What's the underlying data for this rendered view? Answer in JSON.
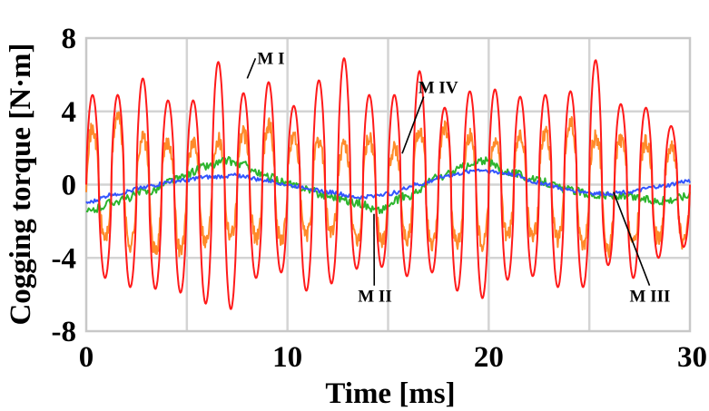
{
  "chart_data": {
    "type": "line",
    "title": "",
    "xlabel": "Time [ms]",
    "ylabel": "Cogging torque [N·m]",
    "xlim": [
      0,
      30
    ],
    "ylim": [
      -8,
      8
    ],
    "xticks": [
      0,
      10,
      20,
      30
    ],
    "yticks": [
      -8,
      -4,
      0,
      4,
      8
    ],
    "xtick_labels": [
      "0",
      "10",
      "20",
      "30"
    ],
    "ytick_labels": [
      "-8",
      "-4",
      "0",
      "4",
      "8"
    ],
    "grid": true,
    "series": [
      {
        "name": "M I",
        "color": "#ff1a1a",
        "label_at": [
          8.5,
          6.6
        ],
        "arrow_to": [
          8.0,
          5.8
        ],
        "period_ms": 1.25,
        "peaks": [
          4.9,
          4.9,
          5.8,
          4.6,
          4.6,
          6.7,
          5.0,
          5.6,
          4.3,
          5.7,
          6.9,
          4.9,
          4.9,
          6.2,
          4.2,
          5.1,
          5.2,
          4.8,
          4.9,
          5.1,
          6.8,
          4.4,
          4.2,
          3.2
        ],
        "troughs": [
          -5.1,
          -5.6,
          -5.7,
          -5.9,
          -6.5,
          -6.8,
          -5.1,
          -4.8,
          -5.8,
          -5.4,
          -4.6,
          -4.5,
          -5.0,
          -4.8,
          -5.8,
          -6.2,
          -5.2,
          -5.0,
          -5.6,
          -5.6,
          -4.4,
          -5.1,
          -4.0,
          -3.4
        ]
      },
      {
        "name": "M II",
        "color": "#2db52d",
        "label_at": [
          13.5,
          -6.4
        ],
        "arrow_to": [
          14.3,
          -1.6
        ],
        "x": [
          0,
          1.5,
          3,
          4.5,
          6,
          7,
          7.7,
          9,
          10.5,
          12,
          13.5,
          14.5,
          16,
          17.5,
          19,
          19.7,
          21,
          22.5,
          24,
          25.5,
          27,
          28.5,
          30
        ],
        "y": [
          -1.5,
          -0.9,
          -0.4,
          0.3,
          1.0,
          1.3,
          1.1,
          0.4,
          -0.1,
          -0.6,
          -1.0,
          -1.4,
          -0.6,
          0.4,
          1.0,
          1.3,
          0.7,
          0.2,
          -0.3,
          -0.6,
          -0.7,
          -0.9,
          -0.6
        ]
      },
      {
        "name": "M III",
        "color": "#3355ff",
        "label_at": [
          27.0,
          -6.4
        ],
        "arrow_to": [
          26.2,
          -0.4
        ],
        "x": [
          0,
          1.5,
          3,
          4.5,
          6,
          7.5,
          9,
          10.5,
          12,
          13.5,
          15,
          16.5,
          18,
          19.5,
          21,
          22.5,
          24,
          25.5,
          27,
          28.5,
          30
        ],
        "y": [
          -1.0,
          -0.5,
          -0.1,
          0.2,
          0.4,
          0.5,
          0.2,
          -0.1,
          -0.4,
          -0.7,
          -0.5,
          0.0,
          0.5,
          0.8,
          0.6,
          0.1,
          -0.3,
          -0.5,
          -0.4,
          -0.1,
          0.2
        ]
      },
      {
        "name": "M IV",
        "color": "#ff8a2a",
        "label_at": [
          16.5,
          5.0
        ],
        "arrow_to": [
          15.7,
          1.7
        ],
        "period_ms": 1.25,
        "peaks": [
          3.0,
          3.8,
          2.6,
          2.3,
          2.2,
          2.5,
          2.8,
          3.3,
          2.6,
          2.3,
          2.1,
          2.5,
          2.0,
          3.0,
          3.1,
          2.7,
          2.4,
          2.6,
          2.9,
          3.4,
          2.6,
          2.4,
          2.3,
          2.1
        ],
        "troughs": [
          -2.9,
          -3.3,
          -3.7,
          -3.6,
          -3.1,
          -2.7,
          -2.9,
          -3.0,
          -2.8,
          -2.6,
          -3.2,
          -3.1,
          -3.0,
          -3.4,
          -3.2,
          -3.2,
          -2.8,
          -2.9,
          -3.0,
          -3.3,
          -3.6,
          -3.3,
          -3.0,
          -3.2
        ]
      }
    ]
  }
}
